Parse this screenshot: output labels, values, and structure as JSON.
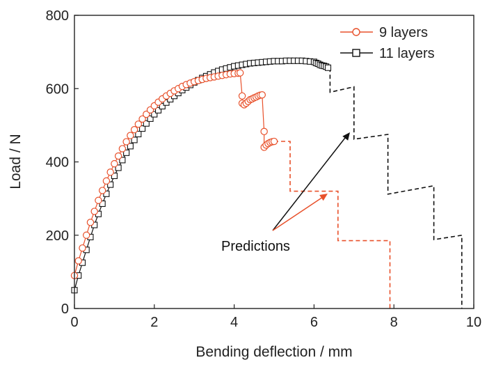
{
  "chart_data": {
    "type": "scatter",
    "xlabel": "Bending deflection / mm",
    "ylabel": "Load / N",
    "xlim": [
      0,
      10
    ],
    "ylim": [
      0,
      800
    ],
    "x_ticks": [
      "0",
      "2",
      "4",
      "6",
      "8",
      "10"
    ],
    "y_ticks": [
      "0",
      "200",
      "400",
      "600",
      "800"
    ],
    "grid": false,
    "legend_position": "top-right",
    "annotation": {
      "text": "Predictions"
    },
    "series": [
      {
        "name": "9 layers",
        "marker": "circle",
        "color": "#e8502a",
        "experimental": [
          [
            0.0,
            90
          ],
          [
            0.1,
            130
          ],
          [
            0.2,
            165
          ],
          [
            0.3,
            200
          ],
          [
            0.4,
            235
          ],
          [
            0.5,
            265
          ],
          [
            0.6,
            295
          ],
          [
            0.7,
            322
          ],
          [
            0.8,
            348
          ],
          [
            0.9,
            372
          ],
          [
            1.0,
            395
          ],
          [
            1.1,
            416
          ],
          [
            1.2,
            436
          ],
          [
            1.3,
            455
          ],
          [
            1.4,
            472
          ],
          [
            1.5,
            488
          ],
          [
            1.6,
            503
          ],
          [
            1.7,
            517
          ],
          [
            1.8,
            530
          ],
          [
            1.9,
            542
          ],
          [
            2.0,
            553
          ],
          [
            2.1,
            563
          ],
          [
            2.2,
            572
          ],
          [
            2.3,
            580
          ],
          [
            2.4,
            587
          ],
          [
            2.5,
            594
          ],
          [
            2.6,
            600
          ],
          [
            2.7,
            606
          ],
          [
            2.8,
            611
          ],
          [
            2.9,
            615
          ],
          [
            3.0,
            619
          ],
          [
            3.1,
            622
          ],
          [
            3.2,
            625
          ],
          [
            3.3,
            628
          ],
          [
            3.4,
            630
          ],
          [
            3.5,
            632
          ],
          [
            3.6,
            634
          ],
          [
            3.7,
            636
          ],
          [
            3.8,
            638
          ],
          [
            3.9,
            640
          ],
          [
            4.0,
            641
          ],
          [
            4.1,
            642
          ],
          [
            4.15,
            643
          ],
          [
            4.2,
            580
          ],
          [
            4.2,
            560
          ],
          [
            4.25,
            556
          ],
          [
            4.3,
            560
          ],
          [
            4.35,
            565
          ],
          [
            4.4,
            570
          ],
          [
            4.45,
            572
          ],
          [
            4.5,
            575
          ],
          [
            4.55,
            577
          ],
          [
            4.6,
            580
          ],
          [
            4.65,
            582
          ],
          [
            4.7,
            583
          ],
          [
            4.75,
            483
          ],
          [
            4.75,
            440
          ],
          [
            4.8,
            446
          ],
          [
            4.85,
            450
          ],
          [
            4.9,
            453
          ],
          [
            4.95,
            455
          ],
          [
            5.0,
            456
          ]
        ],
        "prediction": [
          [
            5.0,
            456
          ],
          [
            5.4,
            456
          ],
          [
            5.4,
            320
          ],
          [
            6.6,
            320
          ],
          [
            6.6,
            185
          ],
          [
            7.9,
            185
          ],
          [
            7.9,
            0
          ]
        ]
      },
      {
        "name": "11 layers",
        "marker": "square",
        "color": "#111111",
        "experimental": [
          [
            0.0,
            50
          ],
          [
            0.1,
            90
          ],
          [
            0.2,
            125
          ],
          [
            0.3,
            160
          ],
          [
            0.4,
            195
          ],
          [
            0.5,
            228
          ],
          [
            0.6,
            258
          ],
          [
            0.7,
            286
          ],
          [
            0.8,
            313
          ],
          [
            0.9,
            338
          ],
          [
            1.0,
            362
          ],
          [
            1.1,
            384
          ],
          [
            1.2,
            405
          ],
          [
            1.3,
            425
          ],
          [
            1.4,
            443
          ],
          [
            1.5,
            460
          ],
          [
            1.6,
            476
          ],
          [
            1.7,
            491
          ],
          [
            1.8,
            505
          ],
          [
            1.9,
            518
          ],
          [
            2.0,
            530
          ],
          [
            2.1,
            541
          ],
          [
            2.2,
            552
          ],
          [
            2.3,
            562
          ],
          [
            2.4,
            571
          ],
          [
            2.5,
            580
          ],
          [
            2.6,
            588
          ],
          [
            2.7,
            596
          ],
          [
            2.8,
            603
          ],
          [
            2.9,
            610
          ],
          [
            3.0,
            617
          ],
          [
            3.1,
            623
          ],
          [
            3.2,
            629
          ],
          [
            3.3,
            634
          ],
          [
            3.4,
            639
          ],
          [
            3.5,
            644
          ],
          [
            3.6,
            648
          ],
          [
            3.7,
            652
          ],
          [
            3.8,
            655
          ],
          [
            3.9,
            658
          ],
          [
            4.0,
            661
          ],
          [
            4.1,
            663
          ],
          [
            4.2,
            665
          ],
          [
            4.3,
            667
          ],
          [
            4.4,
            669
          ],
          [
            4.5,
            670
          ],
          [
            4.6,
            671
          ],
          [
            4.7,
            672
          ],
          [
            4.8,
            673
          ],
          [
            4.9,
            674
          ],
          [
            5.0,
            675
          ],
          [
            5.1,
            675
          ],
          [
            5.2,
            675
          ],
          [
            5.3,
            676
          ],
          [
            5.4,
            676
          ],
          [
            5.5,
            676
          ],
          [
            5.6,
            676
          ],
          [
            5.7,
            676
          ],
          [
            5.8,
            675
          ],
          [
            5.9,
            674
          ],
          [
            6.0,
            673
          ],
          [
            6.05,
            670
          ],
          [
            6.1,
            668
          ],
          [
            6.15,
            665
          ],
          [
            6.2,
            663
          ],
          [
            6.25,
            662
          ],
          [
            6.3,
            660
          ],
          [
            6.35,
            657
          ]
        ],
        "prediction": [
          [
            6.4,
            657
          ],
          [
            6.4,
            590
          ],
          [
            7.0,
            605
          ],
          [
            7.0,
            462
          ],
          [
            7.85,
            475
          ],
          [
            7.85,
            312
          ],
          [
            9.0,
            335
          ],
          [
            9.0,
            188
          ],
          [
            9.7,
            200
          ],
          [
            9.7,
            0
          ]
        ]
      }
    ]
  }
}
